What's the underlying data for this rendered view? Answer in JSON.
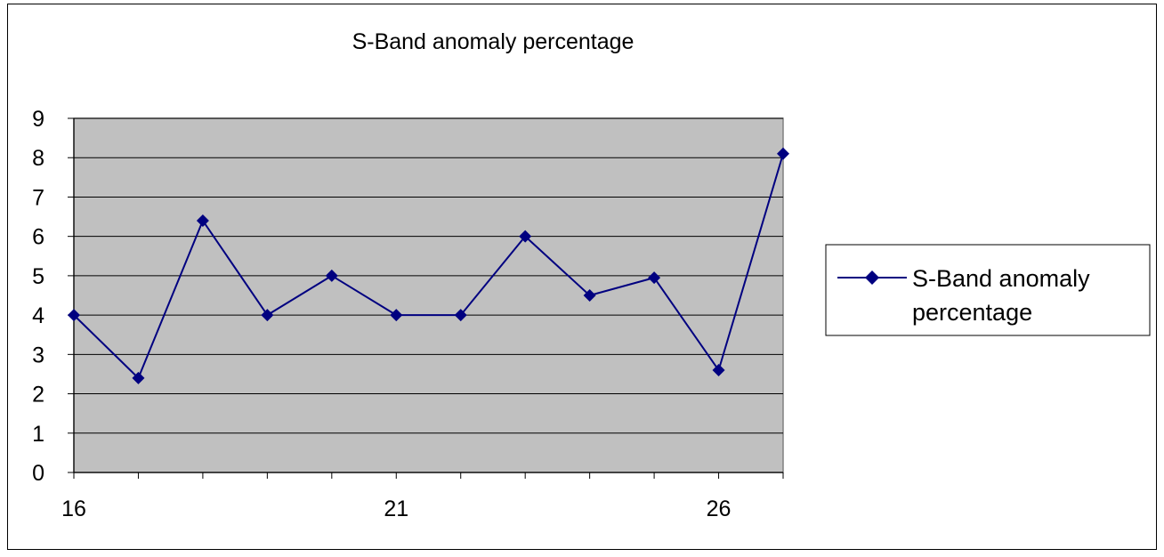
{
  "chart_data": {
    "type": "line",
    "title": "S-Band anomaly percentage",
    "xlabel": "",
    "ylabel": "",
    "x": [
      16,
      17,
      18,
      19,
      20,
      21,
      22,
      23,
      24,
      25,
      26,
      27
    ],
    "x_tick_labels": [
      "16",
      "21",
      "26"
    ],
    "x_ticks": [
      16,
      21,
      26
    ],
    "xlim": [
      16,
      27
    ],
    "y_tick_labels": [
      "0",
      "1",
      "2",
      "3",
      "4",
      "5",
      "6",
      "7",
      "8",
      "9"
    ],
    "y_ticks": [
      0,
      1,
      2,
      3,
      4,
      5,
      6,
      7,
      8,
      9
    ],
    "ylim": [
      0,
      9
    ],
    "grid": true,
    "legend": "right",
    "plot_background": "#c0c0c0",
    "series": [
      {
        "name": "S-Band anomaly percentage",
        "legend_lines": [
          "S-Band anomaly",
          "percentage"
        ],
        "color": "#000080",
        "marker": "diamond",
        "values": [
          4.0,
          2.4,
          6.4,
          4.0,
          5.0,
          4.0,
          4.0,
          6.0,
          4.5,
          4.95,
          2.6,
          8.1
        ]
      }
    ]
  }
}
